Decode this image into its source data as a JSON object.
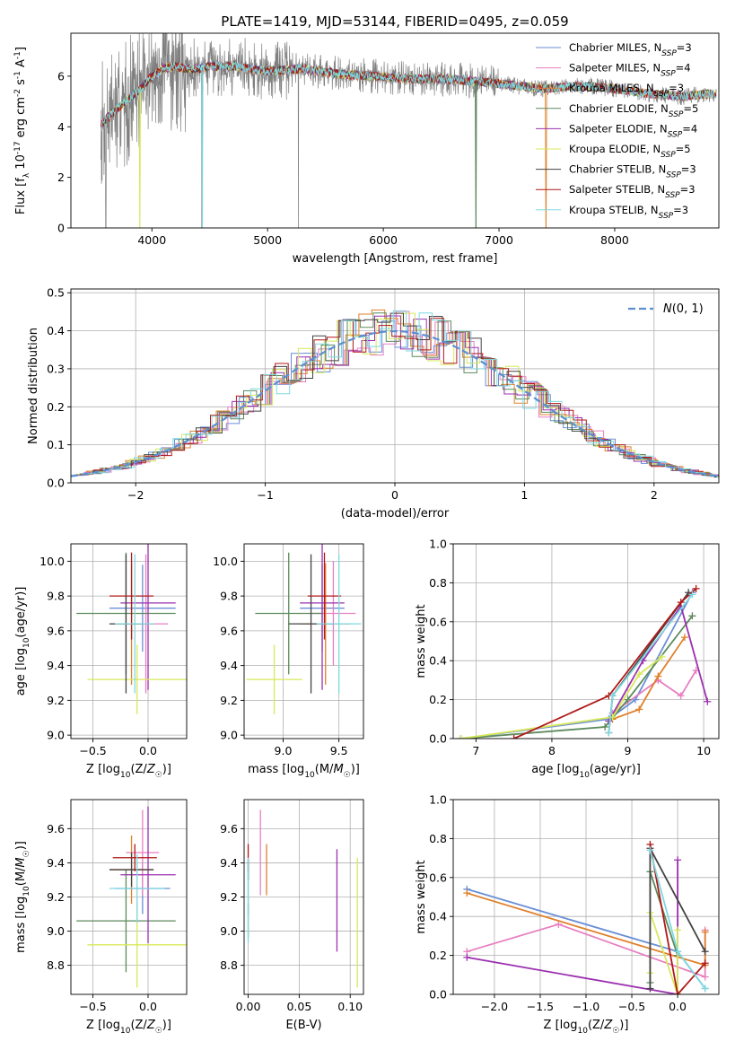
{
  "figure_title": "PLATE=1419, MJD=53144, FIBERID=0495, z=0.059",
  "colors": {
    "Chabrier MILES": "#6a8fd6",
    "Salpeter MILES": "#e77fc0",
    "Kroupa MILES": "#e0802a",
    "Chabrier ELODIE": "#5c8a5c",
    "Salpeter ELODIE": "#9b30b0",
    "Kroupa ELODIE": "#d8e85a",
    "Chabrier STELIB": "#444444",
    "Salpeter STELIB": "#b01818",
    "Kroupa STELIB": "#7ed8e0",
    "data": "#808080",
    "gaussian": "#5b8fd0"
  },
  "chart_data": [
    {
      "type": "line",
      "title": "PLATE=1419, MJD=53144, FIBERID=0495, z=0.059",
      "xlabel": "wavelength [Angstrom, rest frame]",
      "ylabel": "Flux [f_λ 10^-17 erg cm^-2 s^-1 A^-1]",
      "xlim": [
        3300,
        8900
      ],
      "ylim": [
        0,
        7.7
      ],
      "xticks": [
        "4000",
        "5000",
        "6000",
        "7000",
        "8000"
      ],
      "yticks": [
        "0",
        "2",
        "4",
        "6"
      ],
      "legend": "top-right",
      "series_labels": [
        {
          "base": "Chabrier MILES, N",
          "sub": "SSP",
          "tail": "=3"
        },
        {
          "base": "Salpeter MILES, N",
          "sub": "SSP",
          "tail": "=4"
        },
        {
          "base": "Kroupa MILES, N",
          "sub": "SSP",
          "tail": "=3"
        },
        {
          "base": "Chabrier ELODIE, N",
          "sub": "SSP",
          "tail": "=5"
        },
        {
          "base": "Salpeter ELODIE, N",
          "sub": "SSP",
          "tail": "=4"
        },
        {
          "base": "Kroupa ELODIE, N",
          "sub": "SSP",
          "tail": "=5"
        },
        {
          "base": "Chabrier STELIB, N",
          "sub": "SSP",
          "tail": "=3"
        },
        {
          "base": "Salpeter STELIB, N",
          "sub": "SSP",
          "tail": "=3"
        },
        {
          "base": "Kroupa STELIB, N",
          "sub": "SSP",
          "tail": "=3"
        }
      ],
      "continuum": {
        "x": [
          3550,
          3600,
          3700,
          3800,
          3900,
          4000,
          4100,
          4200,
          4300,
          4400,
          4500,
          4700,
          5000,
          5300,
          5600,
          5900,
          6200,
          6500,
          6800,
          7000,
          7200,
          7400,
          7600,
          7800,
          8000,
          8300,
          8600,
          8800
        ],
        "y": [
          4.0,
          4.3,
          4.7,
          5.1,
          5.5,
          6.0,
          6.3,
          6.4,
          6.3,
          6.3,
          6.4,
          6.4,
          6.2,
          6.3,
          6.1,
          6.0,
          5.9,
          5.9,
          5.8,
          5.7,
          5.6,
          5.5,
          5.6,
          5.6,
          5.5,
          5.3,
          5.2,
          5.3
        ]
      }
    },
    {
      "type": "histogram",
      "xlabel": "(data-model)/error",
      "ylabel": "Normed distribution",
      "xlim": [
        -2.5,
        2.5
      ],
      "ylim": [
        0,
        0.51
      ],
      "xticks": [
        "−2",
        "−1",
        "0",
        "1",
        "2"
      ],
      "yticks": [
        "0.0",
        "0.1",
        "0.2",
        "0.3",
        "0.4",
        "0.5"
      ],
      "legend": "top-right",
      "gaussian_label": "N(0, 1)",
      "bin_width": 0.1
    },
    {
      "type": "scatter",
      "xlabel": "Z [log10(Z/Z☉)]",
      "ylabel": "age  [log10(age/yr)]",
      "xlim": [
        -0.7,
        0.35
      ],
      "ylim": [
        8.98,
        10.1
      ],
      "xticks": [
        "−0.5",
        "0.0"
      ],
      "yticks": [
        "9.0",
        "9.2",
        "9.4",
        "9.6",
        "9.8",
        "10.0"
      ],
      "points": [
        {
          "model": "Chabrier MILES",
          "x": -0.05,
          "xerr": 0.3,
          "y": 9.73,
          "yerr": 0.25
        },
        {
          "model": "Salpeter MILES",
          "x": -0.02,
          "xerr": 0.2,
          "y": 9.64,
          "yerr": 0.4
        },
        {
          "model": "Kroupa MILES",
          "x": -0.15,
          "xerr": 0.2,
          "y": 9.64,
          "yerr": 0.35
        },
        {
          "model": "Chabrier ELODIE",
          "x": -0.2,
          "xerr": 0.45,
          "y": 9.7,
          "yerr": 0.35
        },
        {
          "model": "Salpeter ELODIE",
          "x": 0.0,
          "xerr": 0.25,
          "y": 9.76,
          "yerr": 0.5
        },
        {
          "model": "Kroupa ELODIE",
          "x": -0.1,
          "xerr": 0.45,
          "y": 9.32,
          "yerr": 0.2
        },
        {
          "model": "Chabrier STELIB",
          "x": -0.2,
          "xerr": 0.15,
          "y": 9.64,
          "yerr": 0.4
        },
        {
          "model": "Salpeter STELIB",
          "x": -0.15,
          "xerr": 0.2,
          "y": 9.8,
          "yerr": 0.25
        },
        {
          "model": "Kroupa STELIB",
          "x": -0.12,
          "xerr": 0.18,
          "y": 9.64,
          "yerr": 0.4
        }
      ]
    },
    {
      "type": "scatter",
      "xlabel": "mass [log10(M/M☉)]",
      "ylabel": "",
      "xlim": [
        8.65,
        9.72
      ],
      "ylim": [
        8.98,
        10.1
      ],
      "xticks": [
        "9.0",
        "9.5"
      ],
      "yticks": [
        "9.0",
        "9.2",
        "9.4",
        "9.6",
        "9.8",
        "10.0"
      ],
      "points": [
        {
          "model": "Chabrier MILES",
          "x": 9.35,
          "xerr": 0.2,
          "y": 9.73,
          "yerr": 0.25
        },
        {
          "model": "Salpeter MILES",
          "x": 9.45,
          "xerr": 0.2,
          "y": 9.7,
          "yerr": 0.3
        },
        {
          "model": "Kroupa MILES",
          "x": 9.38,
          "xerr": 0.22,
          "y": 9.64,
          "yerr": 0.35
        },
        {
          "model": "Chabrier ELODIE",
          "x": 9.05,
          "xerr": 0.3,
          "y": 9.7,
          "yerr": 0.35
        },
        {
          "model": "Salpeter ELODIE",
          "x": 9.35,
          "xerr": 0.2,
          "y": 9.76,
          "yerr": 0.5
        },
        {
          "model": "Kroupa ELODIE",
          "x": 8.92,
          "xerr": 0.25,
          "y": 9.32,
          "yerr": 0.2
        },
        {
          "model": "Chabrier STELIB",
          "x": 9.25,
          "xerr": 0.2,
          "y": 9.64,
          "yerr": 0.4
        },
        {
          "model": "Salpeter STELIB",
          "x": 9.37,
          "xerr": 0.15,
          "y": 9.8,
          "yerr": 0.25
        },
        {
          "model": "Kroupa STELIB",
          "x": 9.5,
          "xerr": 0.2,
          "y": 9.64,
          "yerr": 0.4
        }
      ]
    },
    {
      "type": "line",
      "xlabel": "age  [log10(age/yr)]",
      "ylabel": "mass weight",
      "xlim": [
        6.7,
        10.2
      ],
      "ylim": [
        0,
        1.0
      ],
      "xticks": [
        "7",
        "8",
        "9",
        "10"
      ],
      "yticks": [
        "0.0",
        "0.2",
        "0.4",
        "0.6",
        "0.8",
        "1.0"
      ],
      "series": [
        {
          "model": "Chabrier MILES",
          "x": [
            6.8,
            8.75,
            9.1,
            9.85
          ],
          "y": [
            0.0,
            0.1,
            0.2,
            0.75
          ]
        },
        {
          "model": "Salpeter MILES",
          "x": [
            8.8,
            9.4,
            9.7,
            9.9
          ],
          "y": [
            0.13,
            0.3,
            0.22,
            0.35
          ]
        },
        {
          "model": "Kroupa MILES",
          "x": [
            8.8,
            9.15,
            9.4,
            9.75
          ],
          "y": [
            0.1,
            0.15,
            0.32,
            0.52
          ]
        },
        {
          "model": "Chabrier ELODIE",
          "x": [
            6.8,
            8.7,
            9.0,
            9.85
          ],
          "y": [
            0.0,
            0.06,
            0.2,
            0.63
          ]
        },
        {
          "model": "Salpeter ELODIE",
          "x": [
            8.75,
            9.2,
            9.7,
            10.05
          ],
          "y": [
            0.09,
            0.4,
            0.68,
            0.19
          ]
        },
        {
          "model": "Kroupa ELODIE",
          "x": [
            6.8,
            8.8,
            9.15,
            9.45
          ],
          "y": [
            0.0,
            0.11,
            0.33,
            0.42
          ]
        },
        {
          "model": "Chabrier STELIB",
          "x": [
            8.75,
            8.8,
            9.8
          ],
          "y": [
            0.03,
            0.22,
            0.75
          ]
        },
        {
          "model": "Salpeter STELIB",
          "x": [
            7.5,
            8.75,
            9.7,
            9.9
          ],
          "y": [
            0.0,
            0.22,
            0.7,
            0.77
          ]
        },
        {
          "model": "Kroupa STELIB",
          "x": [
            8.75,
            8.8,
            9.85
          ],
          "y": [
            0.03,
            0.22,
            0.74
          ]
        }
      ]
    },
    {
      "type": "scatter",
      "xlabel": "Z [log10(Z/Z☉)]",
      "ylabel": "mass [log10(M/M☉)]",
      "xlim": [
        -0.7,
        0.35
      ],
      "ylim": [
        8.63,
        9.77
      ],
      "xticks": [
        "−0.5",
        "0.0"
      ],
      "yticks": [
        "8.8",
        "9.0",
        "9.2",
        "9.4",
        "9.6"
      ],
      "points": [
        {
          "model": "Chabrier MILES",
          "x": -0.05,
          "xerr": 0.25,
          "y": 9.25,
          "yerr": 0.15
        },
        {
          "model": "Salpeter MILES",
          "x": -0.05,
          "xerr": 0.15,
          "y": 9.46,
          "yerr": 0.25
        },
        {
          "model": "Kroupa MILES",
          "x": -0.15,
          "xerr": 0.2,
          "y": 9.36,
          "yerr": 0.2
        },
        {
          "model": "Chabrier ELODIE",
          "x": -0.2,
          "xerr": 0.45,
          "y": 9.06,
          "yerr": 0.3
        },
        {
          "model": "Salpeter ELODIE",
          "x": 0.0,
          "xerr": 0.25,
          "y": 9.33,
          "yerr": 0.4
        },
        {
          "model": "Kroupa ELODIE",
          "x": -0.1,
          "xerr": 0.45,
          "y": 8.92,
          "yerr": 0.25
        },
        {
          "model": "Chabrier STELIB",
          "x": -0.15,
          "xerr": 0.2,
          "y": 9.36,
          "yerr": 0.1
        },
        {
          "model": "Salpeter STELIB",
          "x": -0.12,
          "xerr": 0.2,
          "y": 9.43,
          "yerr": 0.08
        },
        {
          "model": "Kroupa STELIB",
          "x": -0.1,
          "xerr": 0.25,
          "y": 9.25,
          "yerr": 0.2
        }
      ]
    },
    {
      "type": "scatter",
      "xlabel": "E(B-V)",
      "ylabel": "",
      "xlim": [
        -0.004,
        0.113
      ],
      "ylim": [
        8.63,
        9.77
      ],
      "xticks": [
        "0.00",
        "0.05",
        "0.10"
      ],
      "yticks": [
        "8.8",
        "9.0",
        "9.2",
        "9.4",
        "9.6"
      ],
      "points": [
        {
          "model": "Chabrier MILES",
          "x": 0.0,
          "y": 9.25,
          "yerr": 0.15
        },
        {
          "model": "Salpeter MILES",
          "x": 0.012,
          "y": 9.46,
          "yerr": 0.25
        },
        {
          "model": "Kroupa MILES",
          "x": 0.018,
          "y": 9.36,
          "yerr": 0.15
        },
        {
          "model": "Chabrier ELODIE",
          "x": 0.0,
          "y": 9.06,
          "yerr": 0.1
        },
        {
          "model": "Salpeter ELODIE",
          "x": 0.087,
          "y": 9.18,
          "yerr": 0.3
        },
        {
          "model": "Kroupa ELODIE",
          "x": 0.107,
          "y": 9.05,
          "yerr": 0.38
        },
        {
          "model": "Chabrier STELIB",
          "x": 0.0,
          "y": 9.36,
          "yerr": 0.06
        },
        {
          "model": "Salpeter STELIB",
          "x": 0.0,
          "y": 9.43,
          "yerr": 0.08
        },
        {
          "model": "Kroupa STELIB",
          "x": 0.0,
          "y": 9.18,
          "yerr": 0.25
        }
      ]
    },
    {
      "type": "line",
      "xlabel": "Z [log10(Z/Z☉)]",
      "ylabel": "mass weight",
      "xlim": [
        -2.45,
        0.45
      ],
      "ylim": [
        0,
        1.0
      ],
      "xticks": [
        "−2.0",
        "−1.5",
        "−1.0",
        "−0.5",
        "0.0"
      ],
      "yticks": [
        "0.0",
        "0.2",
        "0.4",
        "0.6",
        "0.8",
        "1.0"
      ],
      "series": [
        {
          "model": "Chabrier MILES",
          "x": [
            -2.3,
            0.0,
            0.3
          ],
          "y": [
            0.54,
            0.22,
            0.03
          ]
        },
        {
          "model": "Salpeter MILES",
          "x": [
            -2.3,
            -1.3,
            0.3,
            0.3
          ],
          "y": [
            0.22,
            0.36,
            0.09,
            0.33
          ]
        },
        {
          "model": "Kroupa MILES",
          "x": [
            -2.3,
            0.3,
            0.3
          ],
          "y": [
            0.52,
            0.15,
            0.32
          ]
        },
        {
          "model": "Chabrier ELODIE",
          "x": [
            -0.3,
            -0.3,
            0.0
          ],
          "y": [
            0.06,
            0.63,
            0.2
          ]
        },
        {
          "model": "Salpeter ELODIE",
          "x": [
            -2.3,
            0.0,
            0.0
          ],
          "y": [
            0.19,
            0.0,
            0.69
          ]
        },
        {
          "model": "Kroupa ELODIE",
          "x": [
            -0.3,
            -0.3,
            0.0,
            0.0
          ],
          "y": [
            0.11,
            0.42,
            0.0,
            0.33
          ]
        },
        {
          "model": "Chabrier STELIB",
          "x": [
            -0.3,
            -0.3,
            0.3
          ],
          "y": [
            0.03,
            0.75,
            0.22
          ]
        },
        {
          "model": "Salpeter STELIB",
          "x": [
            -0.3,
            0.0,
            0.3
          ],
          "y": [
            0.77,
            0.0,
            0.16
          ]
        },
        {
          "model": "Kroupa STELIB",
          "x": [
            -0.3,
            0.0,
            0.3
          ],
          "y": [
            0.74,
            0.22,
            0.03
          ]
        }
      ]
    }
  ]
}
